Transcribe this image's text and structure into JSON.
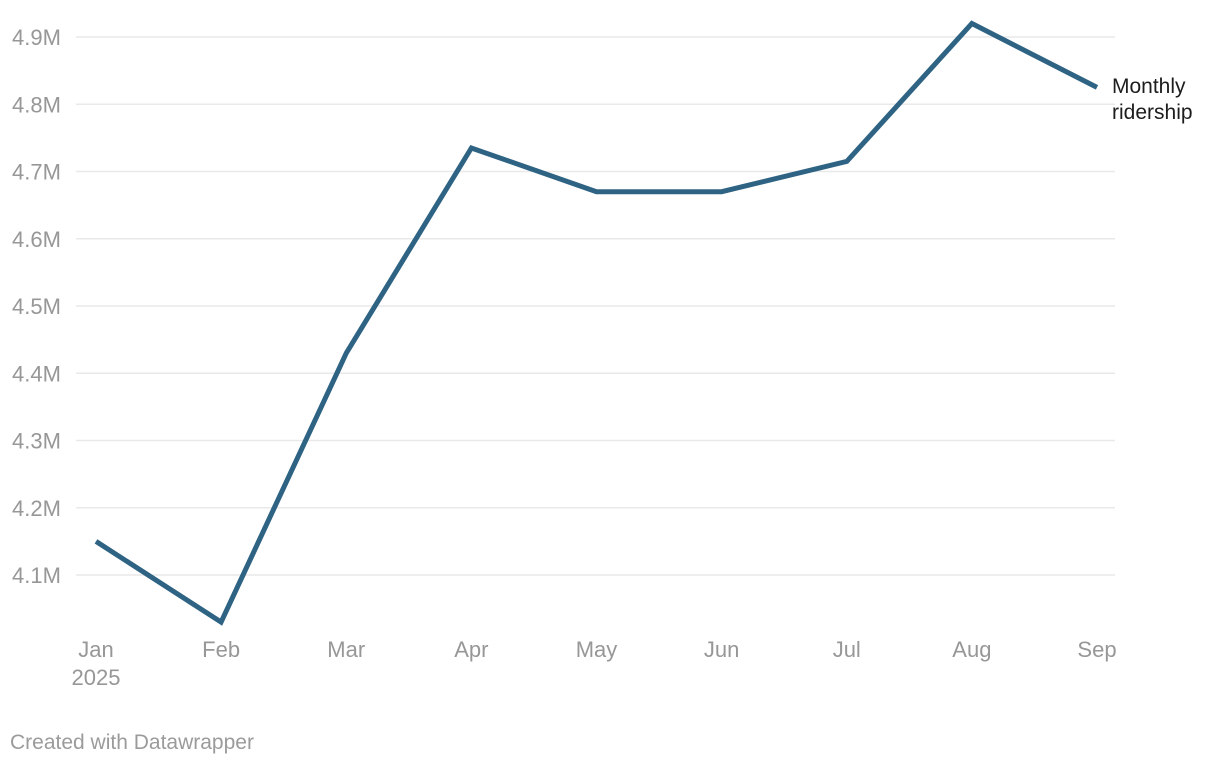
{
  "chart": {
    "annotation_label": "Monthly ridership",
    "line_color": "#2e6384",
    "grid_color": "#e9e9e9",
    "tick_color": "#979797",
    "annotation_color": "#1d1d1d",
    "footer_color": "#9b9b9b"
  },
  "chart_data": {
    "type": "line",
    "title": "",
    "xlabel": "",
    "ylabel": "",
    "categories": [
      "Jan",
      "Feb",
      "Mar",
      "Apr",
      "May",
      "Jun",
      "Jul",
      "Aug",
      "Sep"
    ],
    "x_axis_year_label": "2025",
    "series": [
      {
        "name": "Monthly ridership",
        "values": [
          4150000,
          4030000,
          4430000,
          4735000,
          4670000,
          4670000,
          4715000,
          4920000,
          4825000
        ]
      }
    ],
    "y_ticks": [
      {
        "value": 4100000,
        "label": "4.1M"
      },
      {
        "value": 4200000,
        "label": "4.2M"
      },
      {
        "value": 4300000,
        "label": "4.3M"
      },
      {
        "value": 4400000,
        "label": "4.4M"
      },
      {
        "value": 4500000,
        "label": "4.5M"
      },
      {
        "value": 4600000,
        "label": "4.6M"
      },
      {
        "value": 4700000,
        "label": "4.7M"
      },
      {
        "value": 4800000,
        "label": "4.8M"
      },
      {
        "value": 4900000,
        "label": "4.9M"
      }
    ],
    "ylim": [
      3980000,
      4960000
    ],
    "grid": "horizontal-only",
    "legend_position": "direct-label-right-of-last-point"
  },
  "footer": {
    "attribution": "Created with Datawrapper"
  }
}
